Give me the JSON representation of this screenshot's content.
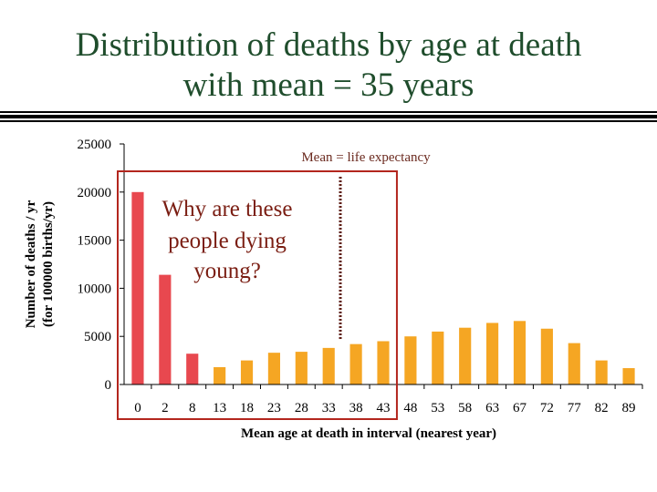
{
  "slide": {
    "title_line1": "Distribution of deaths by age at death",
    "title_line2": "with mean = 35 years"
  },
  "colors": {
    "title": "#1f4d2c",
    "young_bar": "#e8484f",
    "bar": "#f5a623",
    "highlight_box": "#b3261e",
    "mean_line": "#5c1a10",
    "callout_text": "#7a1d12"
  },
  "annotations": {
    "mean_label": "Mean = life expectancy",
    "callout_lines": [
      "Why are these",
      "people dying",
      "young?"
    ]
  },
  "chart_data": {
    "type": "bar",
    "title": "Distribution of deaths by age at death with mean = 35 years",
    "xlabel": "Mean age at death in interval (nearest year)",
    "ylabel_lines": [
      "Number of deaths / yr",
      "(for 100000 births/yr)"
    ],
    "ylim": [
      0,
      25000
    ],
    "yticks": [
      0,
      5000,
      10000,
      15000,
      20000,
      25000
    ],
    "categories": [
      "0",
      "2",
      "8",
      "13",
      "18",
      "23",
      "28",
      "33",
      "38",
      "43",
      "48",
      "53",
      "58",
      "63",
      "67",
      "72",
      "77",
      "82",
      "89"
    ],
    "values": [
      20000,
      11400,
      3200,
      1800,
      2500,
      3300,
      3400,
      3800,
      4200,
      4500,
      5000,
      5500,
      5900,
      6400,
      6600,
      5800,
      4300,
      2500,
      1700
    ],
    "highlighted_categories": [
      "0",
      "2",
      "8"
    ],
    "mean_age": 35,
    "grid": false,
    "legend": "none"
  }
}
